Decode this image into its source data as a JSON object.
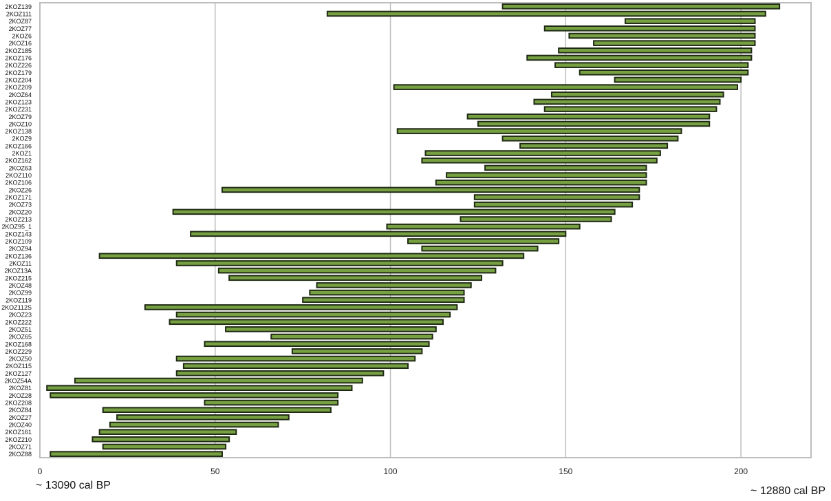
{
  "chart_data": {
    "type": "bar",
    "orientation": "horizontal-range",
    "title": "",
    "xlabel": "",
    "ylabel": "",
    "xlim": [
      0,
      220
    ],
    "xticks": [
      0,
      50,
      100,
      150,
      200
    ],
    "grid": "vertical",
    "bar_color": "#76a042",
    "edge_color": "#1f2a14",
    "annotations": {
      "left": "~ 13090 cal BP",
      "right": "~ 12880 cal BP"
    },
    "categories": [
      "2KOZ139",
      "2KOZ111",
      "2KOZ87",
      "2KOZ77",
      "2KOZ6",
      "2KOZ16",
      "2KOZ185",
      "2KOZ176",
      "2KOZ226",
      "2KOZ179",
      "2KOZ204",
      "2KOZ209",
      "2KOZ64",
      "2KOZ123",
      "2KOZ231",
      "2KOZ79",
      "2KOZ10",
      "2KOZ138",
      "2KOZ9",
      "2KOZ166",
      "2KOZ1",
      "2KOZ162",
      "2KOZ63",
      "2KOZ110",
      "2KOZ106",
      "2KOZ26",
      "2KOZ171",
      "2KOZ73",
      "2KOZ20",
      "2KOZ213",
      "2KOZ95_1",
      "2KOZ143",
      "2KOZ109",
      "2KOZ94",
      "2KOZ136",
      "2KOZ11",
      "2KOZ13A",
      "2KOZ215",
      "2KOZ48",
      "2KOZ99",
      "2KOZ119",
      "2KOZ112S",
      "2KOZ23",
      "2KOZ222",
      "2KOZ51",
      "2KOZ65",
      "2KOZ168",
      "2KOZ229",
      "2KOZ50",
      "2KOZ115",
      "2KOZ127",
      "2KOZ54A",
      "2KOZ81",
      "2KOZ28",
      "2KOZ208",
      "2KOZ84",
      "2KOZ27",
      "2KOZ40",
      "2KOZ161",
      "2KOZ210",
      "2KOZ71",
      "2KOZ88"
    ],
    "starts": [
      132,
      82,
      167,
      144,
      151,
      158,
      148,
      139,
      147,
      154,
      164,
      101,
      146,
      141,
      144,
      122,
      125,
      102,
      132,
      137,
      110,
      109,
      127,
      116,
      113,
      52,
      124,
      124,
      38,
      120,
      99,
      43,
      105,
      109,
      17,
      39,
      51,
      54,
      79,
      77,
      75,
      30,
      39,
      37,
      53,
      66,
      47,
      72,
      39,
      41,
      39,
      10,
      2,
      3,
      47,
      18,
      22,
      20,
      17,
      15,
      18,
      3
    ],
    "ends": [
      211,
      207,
      204,
      204,
      204,
      204,
      203,
      203,
      202,
      202,
      200,
      199,
      195,
      194,
      193,
      191,
      191,
      183,
      182,
      179,
      177,
      176,
      173,
      173,
      173,
      171,
      171,
      169,
      164,
      163,
      154,
      150,
      148,
      142,
      138,
      132,
      130,
      126,
      123,
      121,
      121,
      119,
      117,
      115,
      113,
      112,
      111,
      109,
      107,
      105,
      98,
      92,
      89,
      85,
      85,
      83,
      71,
      68,
      56,
      54,
      53,
      52
    ]
  }
}
